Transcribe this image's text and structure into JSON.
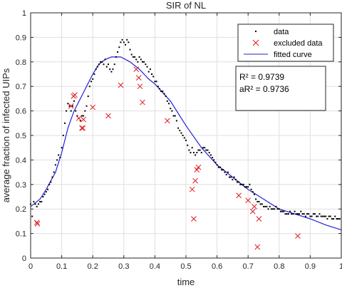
{
  "chart_data": {
    "type": "scatter",
    "title": "SIR of NL",
    "xlabel": "time",
    "ylabel": "average fraction of infected UIPs",
    "xlim": [
      0,
      1
    ],
    "ylim": [
      0,
      1
    ],
    "xticks": [
      "0",
      "0.1",
      "0.2",
      "0.3",
      "0.4",
      "0.5",
      "0.6",
      "0.7",
      "0.8",
      "0.9",
      "1"
    ],
    "yticks": [
      "0",
      "0.1",
      "0.2",
      "0.3",
      "0.4",
      "0.5",
      "0.6",
      "0.7",
      "0.8",
      "0.9",
      "1"
    ],
    "grid": true,
    "legend_position": "top-right",
    "legend": [
      {
        "label": "data",
        "marker": "dot",
        "color": "#000000"
      },
      {
        "label": "excluded data",
        "marker": "x",
        "color": "#e41a1c"
      },
      {
        "label": "fitted curve",
        "marker": "line",
        "color": "#2222dd"
      }
    ],
    "annotation": {
      "r2": "R² = 0.9739",
      "ar2": "aR² = 0.9736"
    },
    "series": [
      {
        "name": "data",
        "color": "#000000",
        "points": [
          [
            0.0,
            0.22
          ],
          [
            0.005,
            0.17
          ],
          [
            0.01,
            0.23
          ],
          [
            0.015,
            0.22
          ],
          [
            0.02,
            0.21
          ],
          [
            0.025,
            0.22
          ],
          [
            0.03,
            0.23
          ],
          [
            0.035,
            0.23
          ],
          [
            0.04,
            0.25
          ],
          [
            0.045,
            0.26
          ],
          [
            0.05,
            0.27
          ],
          [
            0.055,
            0.28
          ],
          [
            0.06,
            0.3
          ],
          [
            0.065,
            0.31
          ],
          [
            0.07,
            0.33
          ],
          [
            0.075,
            0.35
          ],
          [
            0.08,
            0.38
          ],
          [
            0.085,
            0.4
          ],
          [
            0.09,
            0.42
          ],
          [
            0.095,
            0.41
          ],
          [
            0.1,
            0.45
          ],
          [
            0.105,
            0.5
          ],
          [
            0.11,
            0.55
          ],
          [
            0.115,
            0.6
          ],
          [
            0.12,
            0.63
          ],
          [
            0.125,
            0.62
          ],
          [
            0.13,
            0.6
          ],
          [
            0.135,
            0.62
          ],
          [
            0.14,
            0.64
          ],
          [
            0.145,
            0.6
          ],
          [
            0.15,
            0.58
          ],
          [
            0.155,
            0.57
          ],
          [
            0.16,
            0.56
          ],
          [
            0.165,
            0.58
          ],
          [
            0.17,
            0.58
          ],
          [
            0.175,
            0.6
          ],
          [
            0.18,
            0.62
          ],
          [
            0.185,
            0.66
          ],
          [
            0.19,
            0.7
          ],
          [
            0.195,
            0.72
          ],
          [
            0.2,
            0.73
          ],
          [
            0.205,
            0.75
          ],
          [
            0.21,
            0.77
          ],
          [
            0.215,
            0.78
          ],
          [
            0.22,
            0.79
          ],
          [
            0.225,
            0.8
          ],
          [
            0.23,
            0.8
          ],
          [
            0.235,
            0.79
          ],
          [
            0.24,
            0.81
          ],
          [
            0.245,
            0.78
          ],
          [
            0.25,
            0.79
          ],
          [
            0.255,
            0.77
          ],
          [
            0.26,
            0.76
          ],
          [
            0.265,
            0.77
          ],
          [
            0.27,
            0.79
          ],
          [
            0.275,
            0.82
          ],
          [
            0.28,
            0.84
          ],
          [
            0.285,
            0.86
          ],
          [
            0.29,
            0.88
          ],
          [
            0.295,
            0.89
          ],
          [
            0.3,
            0.88
          ],
          [
            0.305,
            0.87
          ],
          [
            0.31,
            0.89
          ],
          [
            0.315,
            0.88
          ],
          [
            0.32,
            0.85
          ],
          [
            0.325,
            0.83
          ],
          [
            0.33,
            0.82
          ],
          [
            0.335,
            0.82
          ],
          [
            0.34,
            0.81
          ],
          [
            0.345,
            0.8
          ],
          [
            0.35,
            0.82
          ],
          [
            0.355,
            0.81
          ],
          [
            0.36,
            0.8
          ],
          [
            0.365,
            0.8
          ],
          [
            0.37,
            0.79
          ],
          [
            0.375,
            0.78
          ],
          [
            0.38,
            0.76
          ],
          [
            0.385,
            0.77
          ],
          [
            0.39,
            0.75
          ],
          [
            0.395,
            0.74
          ],
          [
            0.4,
            0.72
          ],
          [
            0.405,
            0.72
          ],
          [
            0.41,
            0.7
          ],
          [
            0.415,
            0.69
          ],
          [
            0.42,
            0.68
          ],
          [
            0.425,
            0.68
          ],
          [
            0.43,
            0.67
          ],
          [
            0.435,
            0.66
          ],
          [
            0.44,
            0.64
          ],
          [
            0.445,
            0.63
          ],
          [
            0.45,
            0.61
          ],
          [
            0.455,
            0.6
          ],
          [
            0.46,
            0.58
          ],
          [
            0.465,
            0.58
          ],
          [
            0.47,
            0.56
          ],
          [
            0.475,
            0.53
          ],
          [
            0.48,
            0.52
          ],
          [
            0.485,
            0.51
          ],
          [
            0.49,
            0.5
          ],
          [
            0.495,
            0.49
          ],
          [
            0.5,
            0.48
          ],
          [
            0.505,
            0.46
          ],
          [
            0.51,
            0.44
          ],
          [
            0.515,
            0.43
          ],
          [
            0.52,
            0.45
          ],
          [
            0.525,
            0.43
          ],
          [
            0.53,
            0.42
          ],
          [
            0.535,
            0.43
          ],
          [
            0.54,
            0.44
          ],
          [
            0.545,
            0.44
          ],
          [
            0.55,
            0.43
          ],
          [
            0.555,
            0.45
          ],
          [
            0.56,
            0.45
          ],
          [
            0.565,
            0.44
          ],
          [
            0.57,
            0.44
          ],
          [
            0.575,
            0.43
          ],
          [
            0.58,
            0.42
          ],
          [
            0.585,
            0.41
          ],
          [
            0.59,
            0.4
          ],
          [
            0.595,
            0.39
          ],
          [
            0.6,
            0.38
          ],
          [
            0.605,
            0.37
          ],
          [
            0.61,
            0.37
          ],
          [
            0.615,
            0.36
          ],
          [
            0.62,
            0.36
          ],
          [
            0.625,
            0.35
          ],
          [
            0.63,
            0.34
          ],
          [
            0.635,
            0.35
          ],
          [
            0.64,
            0.33
          ],
          [
            0.645,
            0.33
          ],
          [
            0.65,
            0.32
          ],
          [
            0.655,
            0.33
          ],
          [
            0.66,
            0.32
          ],
          [
            0.665,
            0.31
          ],
          [
            0.67,
            0.31
          ],
          [
            0.675,
            0.3
          ],
          [
            0.68,
            0.3
          ],
          [
            0.685,
            0.3
          ],
          [
            0.69,
            0.29
          ],
          [
            0.695,
            0.29
          ],
          [
            0.7,
            0.29
          ],
          [
            0.705,
            0.3
          ],
          [
            0.71,
            0.28
          ],
          [
            0.715,
            0.27
          ],
          [
            0.72,
            0.26
          ],
          [
            0.725,
            0.24
          ],
          [
            0.73,
            0.23
          ],
          [
            0.735,
            0.23
          ],
          [
            0.74,
            0.22
          ],
          [
            0.745,
            0.22
          ],
          [
            0.75,
            0.21
          ],
          [
            0.755,
            0.21
          ],
          [
            0.76,
            0.21
          ],
          [
            0.765,
            0.2
          ],
          [
            0.77,
            0.21
          ],
          [
            0.775,
            0.2
          ],
          [
            0.78,
            0.2
          ],
          [
            0.785,
            0.2
          ],
          [
            0.79,
            0.21
          ],
          [
            0.795,
            0.2
          ],
          [
            0.8,
            0.2
          ],
          [
            0.805,
            0.19
          ],
          [
            0.81,
            0.19
          ],
          [
            0.815,
            0.19
          ],
          [
            0.82,
            0.18
          ],
          [
            0.825,
            0.18
          ],
          [
            0.83,
            0.18
          ],
          [
            0.835,
            0.19
          ],
          [
            0.84,
            0.18
          ],
          [
            0.845,
            0.18
          ],
          [
            0.85,
            0.19
          ],
          [
            0.855,
            0.18
          ],
          [
            0.86,
            0.18
          ],
          [
            0.865,
            0.18
          ],
          [
            0.87,
            0.19
          ],
          [
            0.875,
            0.18
          ],
          [
            0.88,
            0.18
          ],
          [
            0.885,
            0.17
          ],
          [
            0.89,
            0.18
          ],
          [
            0.895,
            0.18
          ],
          [
            0.9,
            0.17
          ],
          [
            0.905,
            0.17
          ],
          [
            0.91,
            0.18
          ],
          [
            0.915,
            0.18
          ],
          [
            0.92,
            0.17
          ],
          [
            0.925,
            0.17
          ],
          [
            0.93,
            0.18
          ],
          [
            0.935,
            0.17
          ],
          [
            0.94,
            0.17
          ],
          [
            0.945,
            0.17
          ],
          [
            0.95,
            0.17
          ],
          [
            0.955,
            0.16
          ],
          [
            0.96,
            0.17
          ],
          [
            0.965,
            0.17
          ],
          [
            0.97,
            0.16
          ],
          [
            0.975,
            0.16
          ],
          [
            0.98,
            0.17
          ],
          [
            0.985,
            0.16
          ],
          [
            0.99,
            0.16
          ],
          [
            0.995,
            0.16
          ]
        ]
      },
      {
        "name": "excluded data",
        "color": "#e41a1c",
        "points": [
          [
            0.02,
            0.145
          ],
          [
            0.022,
            0.14
          ],
          [
            0.13,
            0.62
          ],
          [
            0.138,
            0.66
          ],
          [
            0.142,
            0.665
          ],
          [
            0.155,
            0.57
          ],
          [
            0.165,
            0.53
          ],
          [
            0.168,
            0.53
          ],
          [
            0.17,
            0.565
          ],
          [
            0.2,
            0.615
          ],
          [
            0.25,
            0.58
          ],
          [
            0.29,
            0.705
          ],
          [
            0.34,
            0.77
          ],
          [
            0.348,
            0.735
          ],
          [
            0.352,
            0.7
          ],
          [
            0.36,
            0.635
          ],
          [
            0.44,
            0.56
          ],
          [
            0.52,
            0.28
          ],
          [
            0.525,
            0.16
          ],
          [
            0.53,
            0.315
          ],
          [
            0.535,
            0.36
          ],
          [
            0.54,
            0.37
          ],
          [
            0.67,
            0.255
          ],
          [
            0.7,
            0.235
          ],
          [
            0.715,
            0.19
          ],
          [
            0.72,
            0.21
          ],
          [
            0.73,
            0.045
          ],
          [
            0.735,
            0.16
          ],
          [
            0.86,
            0.09
          ]
        ]
      },
      {
        "name": "fitted curve",
        "color": "#2222dd",
        "points": [
          [
            0.0,
            0.21
          ],
          [
            0.03,
            0.24
          ],
          [
            0.05,
            0.28
          ],
          [
            0.08,
            0.35
          ],
          [
            0.1,
            0.43
          ],
          [
            0.12,
            0.53
          ],
          [
            0.14,
            0.6
          ],
          [
            0.16,
            0.65
          ],
          [
            0.18,
            0.7
          ],
          [
            0.2,
            0.75
          ],
          [
            0.22,
            0.79
          ],
          [
            0.24,
            0.81
          ],
          [
            0.26,
            0.82
          ],
          [
            0.29,
            0.82
          ],
          [
            0.32,
            0.8
          ],
          [
            0.35,
            0.77
          ],
          [
            0.38,
            0.73
          ],
          [
            0.4,
            0.71
          ],
          [
            0.45,
            0.64
          ],
          [
            0.5,
            0.54
          ],
          [
            0.55,
            0.45
          ],
          [
            0.6,
            0.38
          ],
          [
            0.65,
            0.33
          ],
          [
            0.7,
            0.28
          ],
          [
            0.75,
            0.24
          ],
          [
            0.8,
            0.2
          ],
          [
            0.85,
            0.18
          ],
          [
            0.9,
            0.16
          ],
          [
            0.95,
            0.135
          ],
          [
            1.0,
            0.115
          ]
        ]
      }
    ]
  }
}
